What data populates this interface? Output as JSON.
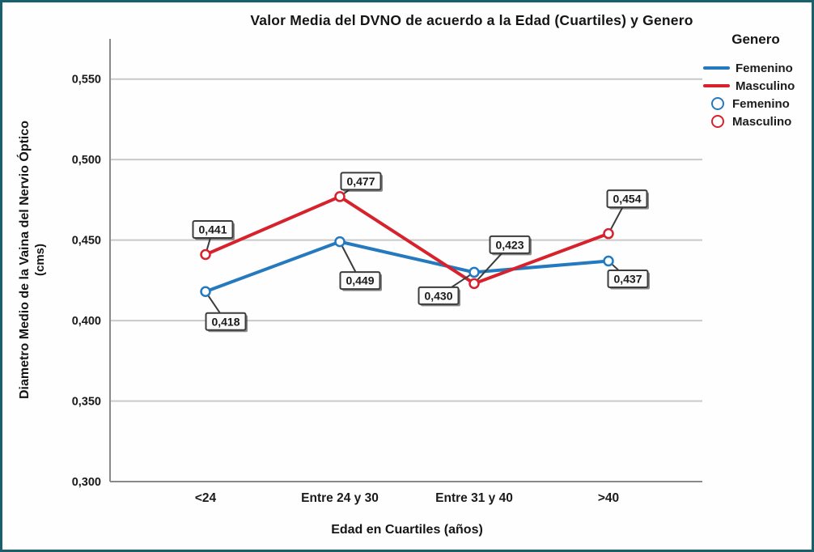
{
  "title": "Valor Media del DVNO de acuerdo a la Edad (Cuartiles) y Genero",
  "legend": {
    "title": "Genero",
    "line_entries": [
      {
        "label": "Femenino",
        "color": "#2579be"
      },
      {
        "label": "Masculino",
        "color": "#d7222d"
      }
    ],
    "marker_entries": [
      {
        "label": "Femenino",
        "color": "#2579be"
      },
      {
        "label": "Masculino",
        "color": "#d7222d"
      }
    ]
  },
  "chart_data": {
    "type": "line",
    "title": "Valor Media del DVNO de acuerdo a la Edad (Cuartiles) y Genero",
    "xlabel": "Edad en Cuartiles (años)",
    "ylabel": "Diametro Medio de la Vaina del Nervio Óptico",
    "ylabel_unit": "(cms)",
    "categories": [
      "<24",
      "Entre 24 y 30",
      "Entre 31 y 40",
      ">40"
    ],
    "series": [
      {
        "name": "Femenino",
        "color": "#2579be",
        "values": [
          0.418,
          0.449,
          0.43,
          0.437
        ],
        "labels": [
          "0,418",
          "0,449",
          "0,430",
          "0,437"
        ],
        "label_offsets": [
          [
            25,
            37
          ],
          [
            25,
            48
          ],
          [
            -44,
            29
          ],
          [
            24,
            22
          ]
        ]
      },
      {
        "name": "Masculino",
        "color": "#d7222d",
        "values": [
          0.441,
          0.477,
          0.423,
          0.454
        ],
        "labels": [
          "0,441",
          "0,477",
          "0,423",
          "0,454"
        ],
        "label_offsets": [
          [
            9,
            -31
          ],
          [
            26,
            -19
          ],
          [
            44,
            -48
          ],
          [
            23,
            -43
          ]
        ]
      }
    ],
    "yticks": [
      0.3,
      0.35,
      0.4,
      0.45,
      0.5,
      0.55
    ],
    "ytick_labels": [
      "0,300",
      "0,350",
      "0,400",
      "0,450",
      "0,500",
      "0,550"
    ],
    "ylim": [
      0.3,
      0.575
    ],
    "grid": "horizontal",
    "legend_position": "top-right",
    "colors": {
      "gridline": "#c9c9c9",
      "axis": "#8a8a8a",
      "label_box_border": "#3c3c3c",
      "label_box_fill": "#fbfbfb",
      "text": "#1a1a1a"
    }
  }
}
